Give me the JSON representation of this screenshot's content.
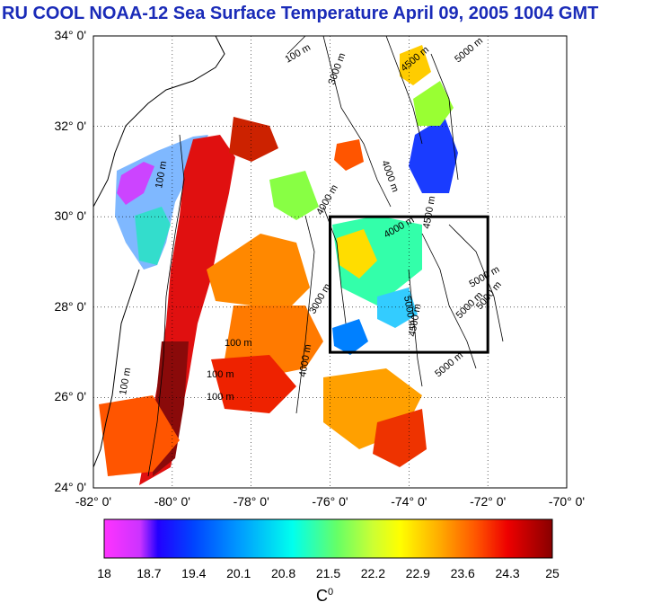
{
  "title": "RU COOL  NOAA-12 Sea Surface Temperature April 09, 2005 1004 GMT",
  "map": {
    "lon_range": [
      -82,
      -70
    ],
    "lat_range": [
      24,
      34
    ],
    "lat_labels": [
      "34° 0'",
      "32° 0'",
      "30° 0'",
      "28° 0'",
      "26° 0'",
      "24° 0'"
    ],
    "lon_labels": [
      "-82° 0'",
      "-80° 0'",
      "-78° 0'",
      "-76° 0'",
      "-74° 0'",
      "-72° 0'",
      "-70° 0'"
    ],
    "grid": "dotted",
    "box": {
      "lon": [
        -76,
        -72
      ],
      "lat": [
        27,
        30
      ]
    },
    "contour_labels": [
      "100 m",
      "100 m",
      "100 m",
      "100 m",
      "100 m",
      "100 m",
      "3000 m",
      "4000 m",
      "4500 m",
      "5000 m",
      "4000 m",
      "5000 m",
      "5000 m",
      "4500 m",
      "4500 m",
      "5000 m",
      "5000 m",
      "5000 m",
      "3000 m",
      "4000 m",
      "4000 m"
    ]
  },
  "colorbar": {
    "min": 18,
    "max": 25,
    "ticks": [
      "18",
      "18.7",
      "19.4",
      "20.1",
      "20.8",
      "21.5",
      "22.2",
      "22.9",
      "23.6",
      "24.3",
      "25"
    ],
    "unit_base": "C",
    "unit_sup": "0",
    "colors": [
      "#ff33ff",
      "#9933ff",
      "#0000ff",
      "#0066ff",
      "#00ccff",
      "#00ffcc",
      "#66ff66",
      "#ccff33",
      "#ffff00",
      "#ffaa00",
      "#ff5500",
      "#ee0000",
      "#880000"
    ]
  }
}
